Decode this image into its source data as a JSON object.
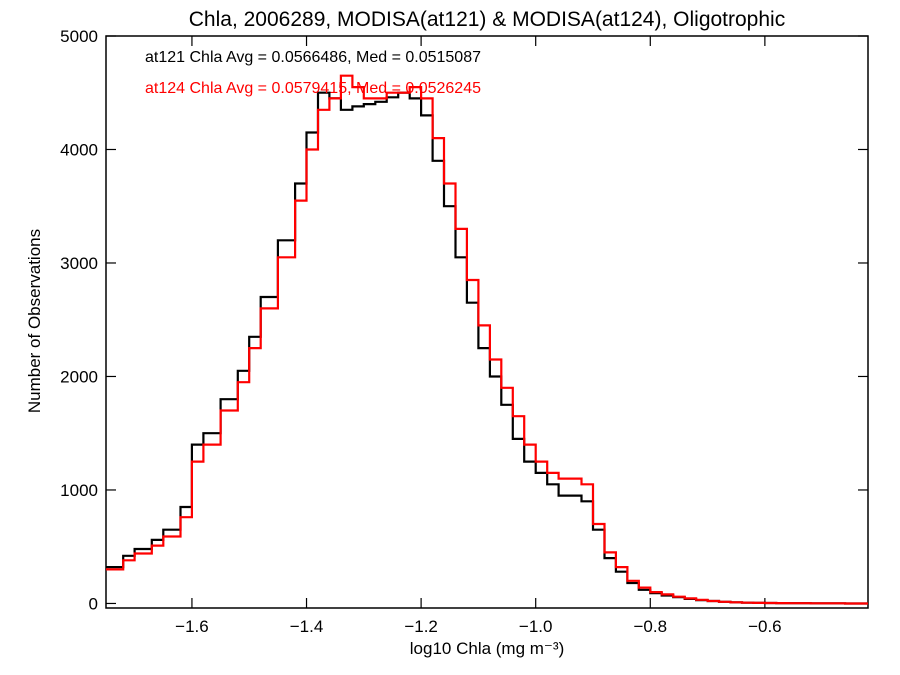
{
  "chart_data": {
    "type": "line",
    "style": "histogram-step",
    "title": "Chla, 2006289, MODISA(at121) & MODISA(at124), Oligotrophic",
    "xlabel": "log10 Chla (mg m⁻³)",
    "ylabel": "Number of Observations",
    "xlim": [
      -1.75,
      -0.42
    ],
    "ylim": [
      -40,
      5000
    ],
    "xticks": [
      -1.6,
      -1.4,
      -1.2,
      -1.0,
      -0.8,
      -0.6
    ],
    "xtick_labels": [
      "−1.6",
      "−1.4",
      "−1.2",
      "−1.0",
      "−0.8",
      "−0.6"
    ],
    "yticks": [
      0,
      1000,
      2000,
      3000,
      4000,
      5000
    ],
    "ytick_labels": [
      "0",
      "1000",
      "2000",
      "3000",
      "4000",
      "5000"
    ],
    "grid": false,
    "annotations": [
      {
        "text": "at121 Chla Avg = 0.0566486, Med = 0.0515087",
        "color": "#000000"
      },
      {
        "text": "at124 Chla Avg = 0.0579415, Med = 0.0526245",
        "color": "#ff0000"
      }
    ],
    "series": [
      {
        "color": "#000000",
        "x": [
          -1.75,
          -1.72,
          -1.7,
          -1.67,
          -1.65,
          -1.62,
          -1.6,
          -1.58,
          -1.55,
          -1.52,
          -1.5,
          -1.48,
          -1.45,
          -1.42,
          -1.4,
          -1.38,
          -1.36,
          -1.34,
          -1.32,
          -1.3,
          -1.28,
          -1.26,
          -1.24,
          -1.22,
          -1.2,
          -1.18,
          -1.16,
          -1.14,
          -1.12,
          -1.1,
          -1.08,
          -1.06,
          -1.04,
          -1.02,
          -1.0,
          -0.98,
          -0.96,
          -0.94,
          -0.92,
          -0.9,
          -0.88,
          -0.86,
          -0.84,
          -0.82,
          -0.8,
          -0.78,
          -0.76,
          -0.74,
          -0.72,
          -0.7,
          -0.68,
          -0.66,
          -0.64,
          -0.62,
          -0.6,
          -0.58,
          -0.56,
          -0.54,
          -0.52,
          -0.5,
          -0.48,
          -0.46,
          -0.44,
          -0.42
        ],
        "y": [
          320,
          420,
          480,
          560,
          650,
          850,
          1400,
          1500,
          1800,
          2050,
          2350,
          2700,
          3200,
          3700,
          4150,
          4500,
          4450,
          4350,
          4380,
          4400,
          4420,
          4460,
          4500,
          4450,
          4300,
          3900,
          3500,
          3050,
          2650,
          2250,
          2000,
          1750,
          1450,
          1250,
          1150,
          1050,
          950,
          950,
          900,
          650,
          400,
          280,
          180,
          120,
          90,
          70,
          55,
          40,
          30,
          22,
          15,
          10,
          7,
          5,
          4,
          3,
          2,
          2,
          1,
          1,
          1,
          0,
          0,
          0
        ]
      },
      {
        "color": "#ff0000",
        "x": [
          -1.75,
          -1.72,
          -1.7,
          -1.67,
          -1.65,
          -1.62,
          -1.6,
          -1.58,
          -1.55,
          -1.52,
          -1.5,
          -1.48,
          -1.45,
          -1.42,
          -1.4,
          -1.38,
          -1.36,
          -1.34,
          -1.32,
          -1.3,
          -1.28,
          -1.26,
          -1.24,
          -1.22,
          -1.2,
          -1.18,
          -1.16,
          -1.14,
          -1.12,
          -1.1,
          -1.08,
          -1.06,
          -1.04,
          -1.02,
          -1.0,
          -0.98,
          -0.96,
          -0.94,
          -0.92,
          -0.9,
          -0.88,
          -0.86,
          -0.84,
          -0.82,
          -0.8,
          -0.78,
          -0.76,
          -0.74,
          -0.72,
          -0.7,
          -0.68,
          -0.66,
          -0.64,
          -0.62,
          -0.6,
          -0.58,
          -0.56,
          -0.54,
          -0.52,
          -0.5,
          -0.48,
          -0.46,
          -0.44,
          -0.42
        ],
        "y": [
          300,
          380,
          440,
          510,
          590,
          760,
          1250,
          1400,
          1700,
          1950,
          2250,
          2600,
          3050,
          3550,
          4000,
          4350,
          4450,
          4650,
          4550,
          4450,
          4450,
          4500,
          4500,
          4550,
          4450,
          4100,
          3700,
          3300,
          2850,
          2450,
          2150,
          1900,
          1650,
          1400,
          1250,
          1150,
          1100,
          1100,
          1050,
          700,
          450,
          320,
          200,
          140,
          100,
          80,
          60,
          45,
          32,
          22,
          15,
          10,
          7,
          5,
          4,
          3,
          2,
          2,
          1,
          1,
          1,
          0,
          0,
          0
        ]
      }
    ]
  }
}
